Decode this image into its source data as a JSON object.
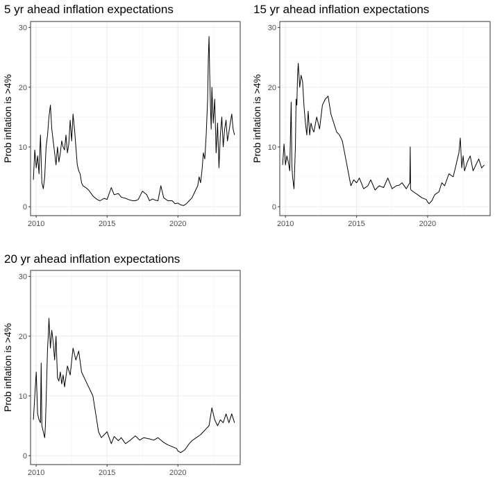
{
  "chart_data": [
    {
      "type": "line",
      "title": "5 yr ahead inflation expectations",
      "xlabel": "",
      "ylabel": "Prob inflation is >4%",
      "xlim": [
        2009.6,
        2024.4
      ],
      "ylim": [
        -1.5,
        31
      ],
      "xticks": [
        2010,
        2015,
        2020
      ],
      "xtick_labels": [
        "2010",
        "2015",
        "2020"
      ],
      "yticks": [
        0,
        10,
        20,
        30
      ],
      "ytick_labels": [
        "0",
        "10",
        "20",
        "30"
      ],
      "grid": true,
      "series": [
        {
          "name": "5 yr",
          "x": [
            2009.8,
            2009.9,
            2010.0,
            2010.1,
            2010.2,
            2010.3,
            2010.4,
            2010.5,
            2010.6,
            2010.7,
            2010.8,
            2010.9,
            2011.0,
            2011.1,
            2011.2,
            2011.3,
            2011.4,
            2011.5,
            2011.6,
            2011.7,
            2011.8,
            2011.9,
            2012.0,
            2012.1,
            2012.2,
            2012.3,
            2012.4,
            2012.5,
            2012.6,
            2012.7,
            2012.8,
            2012.9,
            2013.0,
            2013.1,
            2013.2,
            2013.3,
            2013.5,
            2013.7,
            2014.0,
            2014.3,
            2014.5,
            2014.8,
            2015.0,
            2015.3,
            2015.5,
            2015.8,
            2016.0,
            2016.3,
            2016.5,
            2016.8,
            2017.0,
            2017.2,
            2017.5,
            2017.8,
            2018.0,
            2018.2,
            2018.4,
            2018.6,
            2018.8,
            2019.0,
            2019.3,
            2019.6,
            2019.8,
            2020.0,
            2020.2,
            2020.4,
            2020.6,
            2020.8,
            2021.0,
            2021.2,
            2021.4,
            2021.5,
            2021.6,
            2021.7,
            2021.8,
            2021.9,
            2022.0,
            2022.1,
            2022.15,
            2022.2,
            2022.25,
            2022.3,
            2022.35,
            2022.4,
            2022.5,
            2022.6,
            2022.7,
            2022.8,
            2022.9,
            2023.0,
            2023.1,
            2023.2,
            2023.3,
            2023.4,
            2023.5,
            2023.6,
            2023.7,
            2023.8,
            2023.9,
            2024.0
          ],
          "y": [
            4.5,
            9.5,
            6.5,
            8.5,
            5.5,
            12.0,
            4.0,
            3.0,
            5.0,
            10.0,
            12.0,
            15.0,
            17.0,
            13.0,
            11.0,
            9.0,
            7.0,
            10.0,
            7.5,
            9.0,
            11.0,
            10.0,
            9.5,
            12.0,
            9.0,
            10.5,
            14.5,
            11.0,
            15.5,
            13.0,
            10.0,
            7.0,
            6.0,
            5.5,
            4.0,
            3.5,
            3.2,
            2.8,
            1.8,
            1.2,
            1.0,
            1.4,
            1.2,
            3.2,
            2.0,
            2.2,
            1.6,
            1.4,
            1.2,
            1.0,
            1.0,
            1.2,
            2.6,
            2.0,
            1.0,
            1.3,
            1.1,
            1.0,
            3.5,
            1.5,
            1.0,
            1.0,
            0.5,
            0.6,
            0.3,
            0.2,
            0.5,
            1.0,
            1.5,
            2.5,
            3.5,
            5.0,
            4.0,
            6.0,
            9.0,
            8.0,
            12.0,
            18.0,
            25.0,
            28.5,
            22.0,
            17.0,
            13.0,
            20.0,
            14.0,
            18.0,
            9.0,
            14.0,
            6.5,
            12.0,
            15.0,
            10.0,
            13.0,
            14.5,
            11.0,
            12.5,
            14.0,
            15.5,
            13.0,
            12.0
          ]
        }
      ]
    },
    {
      "type": "line",
      "title": "15 yr ahead inflation expectations",
      "xlabel": "",
      "ylabel": "Prob inflation is >4%",
      "xlim": [
        2009.6,
        2024.4
      ],
      "ylim": [
        -1.5,
        31
      ],
      "xticks": [
        2010,
        2015,
        2020
      ],
      "xtick_labels": [
        "2010",
        "2015",
        "2020"
      ],
      "yticks": [
        0,
        10,
        20,
        30
      ],
      "ytick_labels": [
        "0",
        "10",
        "20",
        "30"
      ],
      "grid": true,
      "series": [
        {
          "name": "15 yr",
          "x": [
            2009.8,
            2009.9,
            2010.0,
            2010.1,
            2010.2,
            2010.3,
            2010.4,
            2010.45,
            2010.5,
            2010.6,
            2010.7,
            2010.75,
            2010.8,
            2010.85,
            2010.9,
            2011.0,
            2011.1,
            2011.2,
            2011.3,
            2011.4,
            2011.5,
            2011.6,
            2011.7,
            2011.8,
            2011.9,
            2012.0,
            2012.2,
            2012.4,
            2012.6,
            2012.8,
            2013.0,
            2013.2,
            2013.4,
            2013.6,
            2013.8,
            2014.0,
            2014.2,
            2014.4,
            2014.6,
            2014.8,
            2015.0,
            2015.2,
            2015.5,
            2015.8,
            2016.0,
            2016.3,
            2016.6,
            2016.9,
            2017.2,
            2017.5,
            2017.8,
            2018.0,
            2018.2,
            2018.5,
            2018.75,
            2018.78,
            2018.8,
            2018.83,
            2019.0,
            2019.3,
            2019.6,
            2019.9,
            2020.0,
            2020.1,
            2020.3,
            2020.5,
            2020.8,
            2021.0,
            2021.2,
            2021.5,
            2021.8,
            2022.0,
            2022.2,
            2022.3,
            2022.4,
            2022.5,
            2022.6,
            2022.8,
            2023.0,
            2023.2,
            2023.4,
            2023.6,
            2023.8,
            2024.0
          ],
          "y": [
            7.0,
            10.5,
            7.0,
            8.5,
            7.5,
            6.0,
            17.5,
            7.0,
            5.0,
            3.0,
            10.0,
            18.0,
            17.0,
            22.0,
            24.0,
            20.0,
            22.0,
            21.0,
            17.0,
            14.0,
            12.0,
            16.0,
            12.0,
            14.0,
            13.0,
            12.5,
            15.0,
            13.0,
            17.0,
            18.0,
            18.5,
            15.5,
            14.0,
            12.5,
            12.0,
            11.0,
            8.5,
            6.0,
            3.5,
            4.5,
            4.0,
            4.8,
            3.0,
            3.5,
            4.5,
            2.8,
            3.5,
            3.2,
            4.8,
            3.0,
            3.5,
            3.6,
            4.0,
            3.0,
            4.0,
            10.0,
            3.0,
            2.8,
            2.5,
            2.0,
            1.5,
            1.2,
            0.8,
            0.5,
            1.0,
            2.0,
            2.5,
            4.0,
            3.5,
            5.5,
            5.0,
            7.0,
            9.0,
            11.5,
            6.5,
            8.5,
            6.0,
            7.5,
            8.5,
            6.0,
            7.0,
            8.0,
            6.5,
            7.0
          ]
        }
      ]
    },
    {
      "type": "line",
      "title": "20 yr ahead inflation expectations",
      "xlabel": "",
      "ylabel": "Prob inflation is >4%",
      "xlim": [
        2009.6,
        2024.4
      ],
      "ylim": [
        -1.5,
        31
      ],
      "xticks": [
        2010,
        2015,
        2020
      ],
      "xtick_labels": [
        "2010",
        "2015",
        "2020"
      ],
      "yticks": [
        0,
        10,
        20,
        30
      ],
      "ytick_labels": [
        "0",
        "10",
        "20",
        "30"
      ],
      "grid": true,
      "series": [
        {
          "name": "20 yr",
          "x": [
            2009.8,
            2009.9,
            2010.0,
            2010.1,
            2010.2,
            2010.3,
            2010.35,
            2010.4,
            2010.5,
            2010.6,
            2010.65,
            2010.7,
            2010.8,
            2010.85,
            2010.9,
            2011.0,
            2011.1,
            2011.2,
            2011.3,
            2011.4,
            2011.5,
            2011.6,
            2011.7,
            2011.8,
            2011.9,
            2012.0,
            2012.2,
            2012.4,
            2012.6,
            2012.8,
            2013.0,
            2013.2,
            2013.4,
            2013.6,
            2013.8,
            2014.0,
            2014.2,
            2014.4,
            2014.6,
            2014.8,
            2015.0,
            2015.3,
            2015.5,
            2015.8,
            2016.0,
            2016.3,
            2016.6,
            2017.0,
            2017.3,
            2017.6,
            2018.0,
            2018.3,
            2018.6,
            2019.0,
            2019.3,
            2019.6,
            2019.9,
            2020.0,
            2020.2,
            2020.5,
            2020.8,
            2021.0,
            2021.3,
            2021.6,
            2021.8,
            2022.0,
            2022.2,
            2022.4,
            2022.6,
            2022.8,
            2023.0,
            2023.2,
            2023.4,
            2023.6,
            2023.8,
            2024.0
          ],
          "y": [
            6.0,
            10.0,
            14.0,
            7.0,
            6.0,
            5.5,
            15.5,
            5.0,
            4.0,
            3.0,
            5.0,
            9.0,
            18.0,
            20.0,
            23.0,
            18.0,
            21.0,
            19.0,
            16.0,
            20.0,
            13.0,
            12.5,
            14.0,
            12.0,
            13.5,
            11.5,
            15.0,
            13.5,
            18.0,
            16.0,
            17.5,
            14.0,
            13.0,
            12.0,
            11.0,
            10.0,
            7.0,
            4.0,
            3.0,
            3.5,
            4.0,
            2.0,
            3.2,
            2.5,
            3.0,
            2.0,
            2.5,
            3.3,
            2.6,
            3.0,
            2.8,
            2.6,
            3.0,
            2.2,
            1.8,
            1.5,
            1.2,
            0.8,
            0.5,
            1.0,
            2.0,
            2.5,
            3.0,
            3.5,
            4.0,
            4.5,
            5.0,
            8.0,
            6.0,
            5.0,
            6.0,
            5.5,
            7.0,
            5.5,
            7.0,
            5.5
          ]
        }
      ]
    }
  ]
}
